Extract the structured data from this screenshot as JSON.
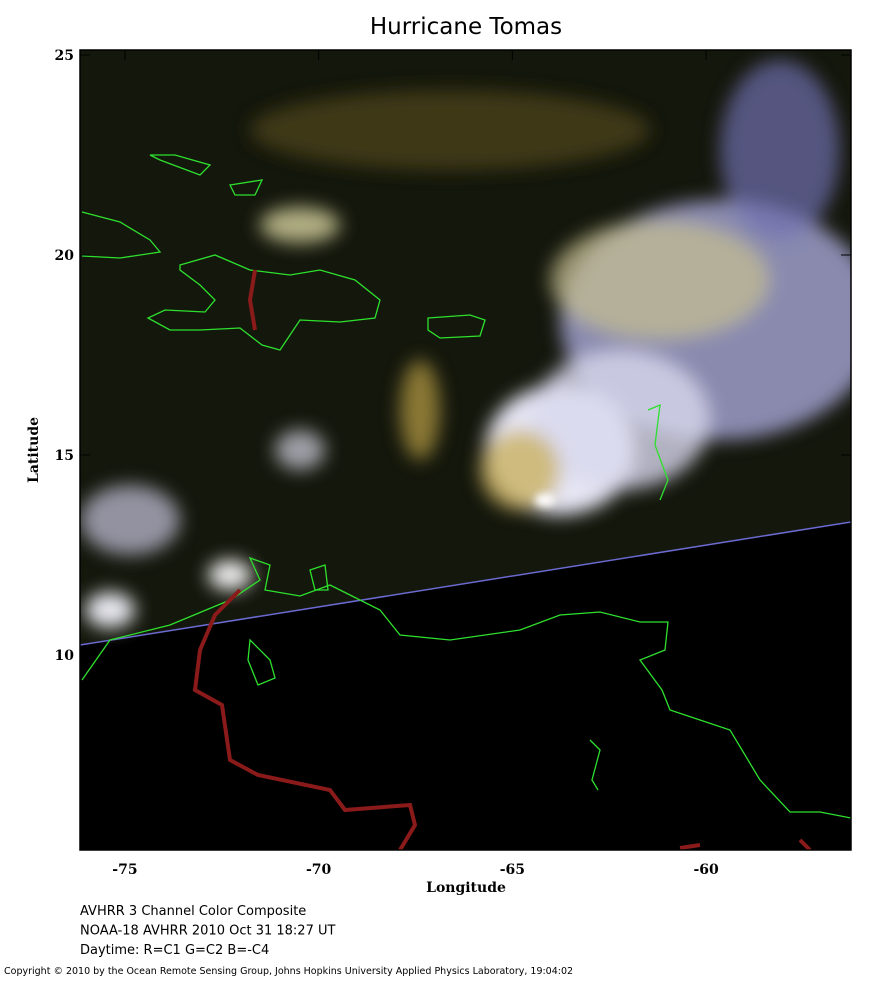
{
  "map": {
    "title": "Hurricane Tomas",
    "x_label": "Longitude",
    "y_label": "Latitude",
    "xlim": [
      -76.16,
      -56.26
    ],
    "ylim": [
      5.125,
      25.125
    ],
    "xticks": [
      -75,
      -70,
      -65,
      -60
    ],
    "yticks": [
      10,
      15,
      20,
      25
    ],
    "caption": [
      "AVHRR 3 Channel Color Composite",
      "NOAA-18 AVHRR 2010 Oct 31 18:27 UT",
      "Daytime: R=C1 G=C2 B=-C4"
    ],
    "copyright": "Copyright © 2010 by the Ocean Remote Sensing Group, Johns Hopkins University Applied Physics Laboratory, 19:04:02"
  }
}
